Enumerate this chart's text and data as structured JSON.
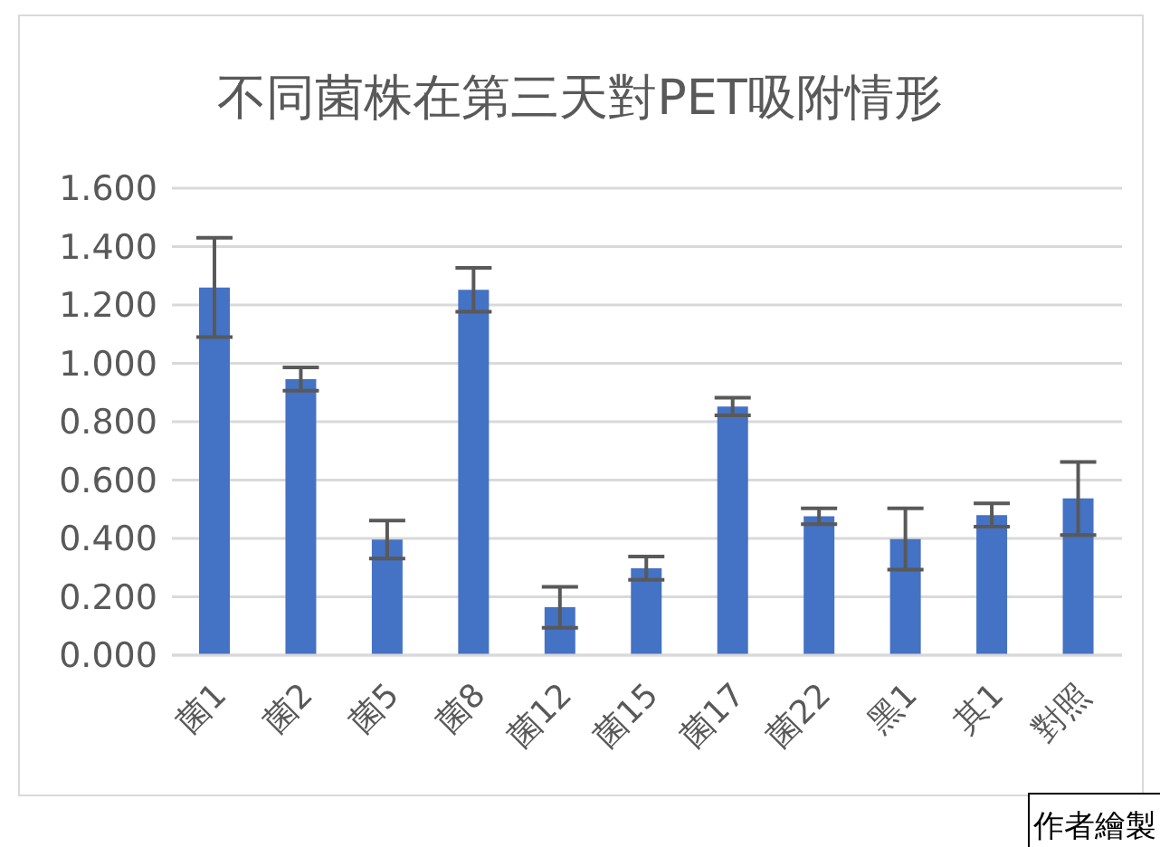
{
  "chart_data": {
    "type": "bar",
    "title": "不同菌株在第三天對PET吸附情形",
    "categories": [
      "菌1",
      "菌2",
      "菌5",
      "菌8",
      "菌12",
      "菌15",
      "菌17",
      "菌22",
      "黑1",
      "其1",
      "對照"
    ],
    "values": [
      1.26,
      0.946,
      0.396,
      1.252,
      0.164,
      0.298,
      0.852,
      0.476,
      0.398,
      0.48,
      0.537
    ],
    "errors": [
      0.17,
      0.04,
      0.065,
      0.075,
      0.07,
      0.04,
      0.03,
      0.027,
      0.105,
      0.04,
      0.125
    ],
    "color": "#4472c4",
    "ylim": [
      0,
      1.6
    ],
    "yticks": [
      {
        "value": 0,
        "label": "0.000"
      },
      {
        "value": 0.2,
        "label": "0.200"
      },
      {
        "value": 0.4,
        "label": "0.400"
      },
      {
        "value": 0.6,
        "label": "0.600"
      },
      {
        "value": 0.8,
        "label": "0.800"
      },
      {
        "value": 1,
        "label": "1.000"
      },
      {
        "value": 1.2,
        "label": "1.200"
      },
      {
        "value": 1.4,
        "label": "1.400"
      },
      {
        "value": 1.6,
        "label": "1.600"
      }
    ],
    "grid": "y",
    "annotations": [
      "作者繪製"
    ]
  }
}
